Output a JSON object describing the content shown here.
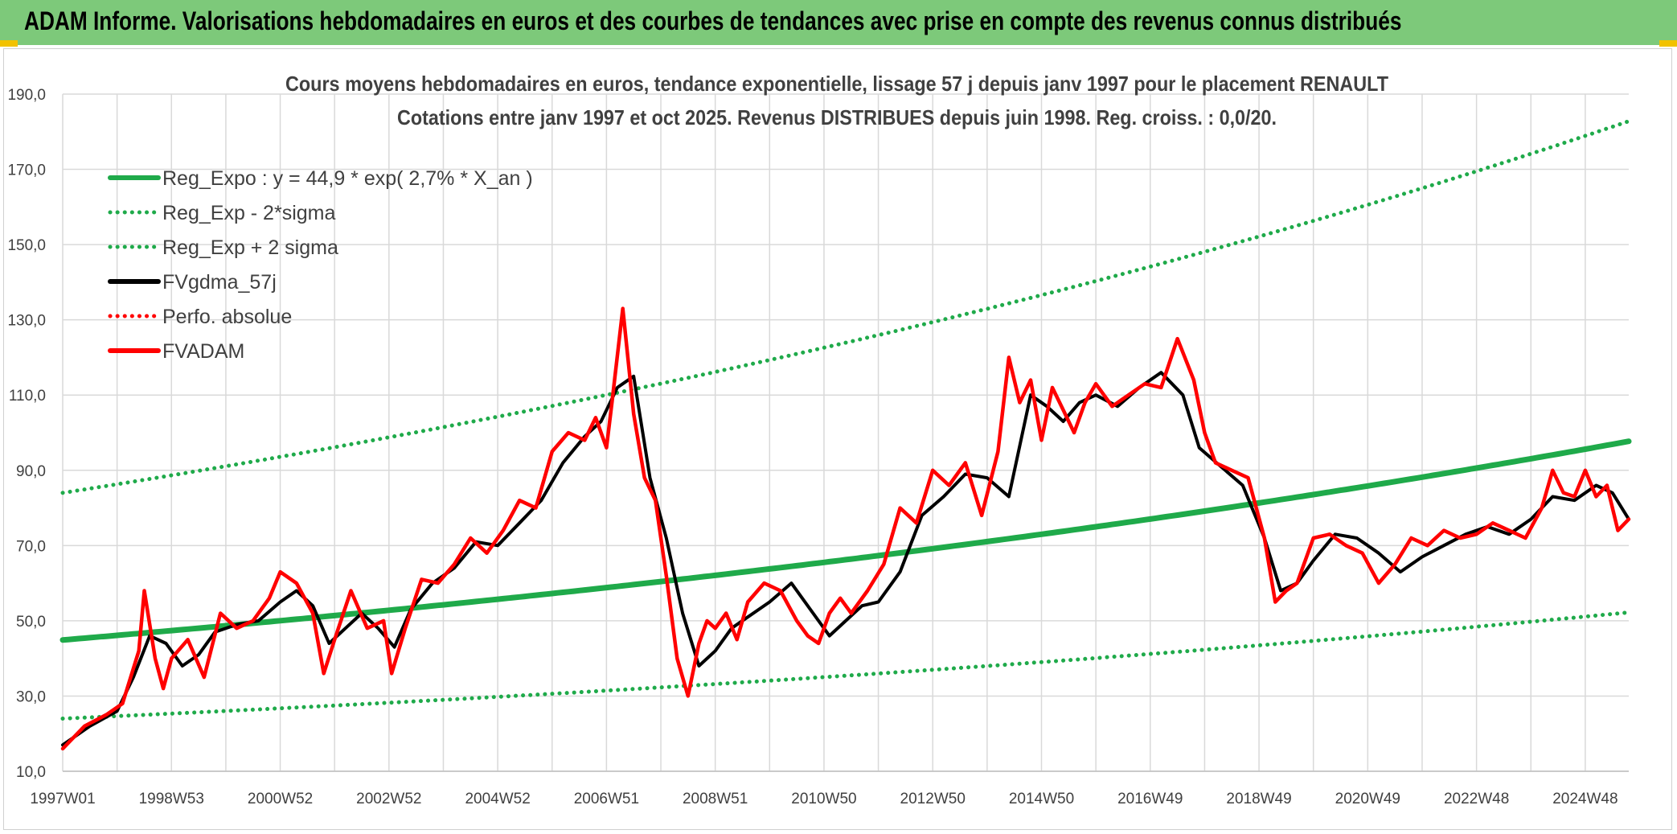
{
  "header": {
    "title": "ADAM Informe. Valorisations hebdomadaires en euros et des courbes de tendances avec prise en compte des revenus connus distribués"
  },
  "colors": {
    "header_bg": "#7dc97a",
    "green": "#1faa4a",
    "black": "#000000",
    "red": "#ff0000",
    "grid": "#d9d9d9"
  },
  "chart_data": {
    "type": "line",
    "title": "Cours moyens hebdomadaires en euros, tendance exponentielle, lissage 57 j depuis janv 1997 pour le placement RENAULT",
    "subtitle": "Cotations entre janv 1997 et oct 2025. Revenus DISTRIBUES depuis juin 1998. Reg. croiss. : 0,0/20.",
    "xlim": [
      1997.0,
      2025.8
    ],
    "ylim": [
      10,
      190
    ],
    "y_ticks": [
      "10,0",
      "30,0",
      "50,0",
      "70,0",
      "90,0",
      "110,0",
      "130,0",
      "150,0",
      "170,0",
      "190,0"
    ],
    "y_tick_values": [
      10,
      30,
      50,
      70,
      90,
      110,
      130,
      150,
      170,
      190
    ],
    "x_ticks": [
      "1997W01",
      "1998W53",
      "2000W52",
      "2002W52",
      "2004W52",
      "2006W51",
      "2008W51",
      "2010W50",
      "2012W50",
      "2014W50",
      "2016W49",
      "2018W49",
      "2020W49",
      "2022W48",
      "2024W48"
    ],
    "x_tick_values": [
      1997.0,
      1999.0,
      2001.0,
      2003.0,
      2005.0,
      2007.0,
      2009.0,
      2011.0,
      2013.0,
      2015.0,
      2017.0,
      2019.0,
      2021.0,
      2023.0,
      2025.0
    ],
    "legend": [
      {
        "name": "Reg_Expo : y = 44,9 * exp( 2,7% *  X_an )",
        "color": "#1faa4a",
        "style": "solid"
      },
      {
        "name": "Reg_Exp - 2*sigma",
        "color": "#1faa4a",
        "style": "dotted"
      },
      {
        "name": "Reg_Exp + 2 sigma",
        "color": "#1faa4a",
        "style": "dotted"
      },
      {
        "name": "FVgdma_57j",
        "color": "#000000",
        "style": "solid"
      },
      {
        "name": "Perfo. absolue",
        "color": "#ff0000",
        "style": "dotted"
      },
      {
        "name": "FVADAM",
        "color": "#ff0000",
        "style": "solid"
      }
    ],
    "series": [
      {
        "name": "Reg_Expo",
        "formula": "44.9*exp(0.027*(x-1997))",
        "x": [
          1997.0,
          2001.0,
          2005.0,
          2009.0,
          2013.0,
          2017.0,
          2021.0,
          2025.8
        ],
        "values": [
          44.9,
          50.1,
          55.9,
          62.4,
          69.7,
          77.8,
          86.8,
          97.8
        ]
      },
      {
        "name": "Reg_Exp - 2*sigma",
        "x": [
          1997.0,
          2001.0,
          2005.0,
          2009.0,
          2013.0,
          2017.0,
          2021.0,
          2025.8
        ],
        "values": [
          24.0,
          26.7,
          29.8,
          33.3,
          37.1,
          41.4,
          46.3,
          52.2
        ]
      },
      {
        "name": "Reg_Exp + 2 sigma",
        "x": [
          1997.0,
          2001.0,
          2005.0,
          2009.0,
          2013.0,
          2017.0,
          2021.0,
          2025.8
        ],
        "values": [
          84.0,
          93.8,
          104.7,
          116.8,
          130.4,
          145.5,
          162.4,
          183.0
        ]
      },
      {
        "name": "FVgdma_57j",
        "x": [
          1997.0,
          1997.5,
          1998.0,
          1998.3,
          1998.6,
          1998.9,
          1999.2,
          1999.5,
          1999.8,
          2000.2,
          2000.6,
          2001.0,
          2001.3,
          2001.6,
          2001.9,
          2002.2,
          2002.5,
          2002.8,
          2003.1,
          2003.4,
          2003.8,
          2004.2,
          2004.6,
          2005.0,
          2005.4,
          2005.8,
          2006.2,
          2006.6,
          2006.9,
          2007.2,
          2007.5,
          2007.8,
          2008.1,
          2008.4,
          2008.7,
          2009.0,
          2009.3,
          2009.6,
          2010.0,
          2010.4,
          2010.8,
          2011.1,
          2011.4,
          2011.7,
          2012.0,
          2012.4,
          2012.8,
          2013.2,
          2013.6,
          2014.0,
          2014.4,
          2014.8,
          2015.1,
          2015.4,
          2015.7,
          2016.0,
          2016.4,
          2016.8,
          2017.2,
          2017.6,
          2017.9,
          2018.3,
          2018.7,
          2019.1,
          2019.4,
          2019.7,
          2020.0,
          2020.4,
          2020.8,
          2021.2,
          2021.6,
          2022.0,
          2022.4,
          2022.8,
          2023.2,
          2023.6,
          2024.0,
          2024.4,
          2024.8,
          2025.2,
          2025.5,
          2025.8
        ],
        "values": [
          17,
          22,
          26,
          35,
          46,
          44,
          38,
          41,
          47,
          49,
          50,
          55,
          58,
          54,
          44,
          48,
          52,
          48,
          43,
          53,
          60,
          64,
          71,
          70,
          76,
          82,
          92,
          99,
          103,
          112,
          115,
          88,
          72,
          52,
          38,
          42,
          48,
          51,
          55,
          60,
          52,
          46,
          50,
          54,
          55,
          63,
          78,
          83,
          89,
          88,
          83,
          110,
          107,
          103,
          108,
          110,
          107,
          112,
          116,
          110,
          96,
          91,
          86,
          72,
          58,
          60,
          66,
          73,
          72,
          68,
          63,
          67,
          70,
          73,
          75,
          73,
          77,
          83,
          82,
          86,
          84,
          77
        ]
      },
      {
        "name": "FVADAM",
        "x": [
          1997.0,
          1997.4,
          1997.8,
          1998.1,
          1998.4,
          1998.5,
          1998.7,
          1998.85,
          1999.0,
          1999.3,
          1999.6,
          1999.9,
          2000.2,
          2000.5,
          2000.8,
          2001.0,
          2001.3,
          2001.6,
          2001.8,
          2002.0,
          2002.3,
          2002.6,
          2002.9,
          2003.05,
          2003.3,
          2003.6,
          2003.9,
          2004.2,
          2004.5,
          2004.8,
          2005.1,
          2005.4,
          2005.7,
          2006.0,
          2006.3,
          2006.6,
          2006.8,
          2007.0,
          2007.1,
          2007.3,
          2007.5,
          2007.7,
          2007.9,
          2008.1,
          2008.3,
          2008.5,
          2008.7,
          2008.85,
          2009.0,
          2009.2,
          2009.4,
          2009.6,
          2009.9,
          2010.2,
          2010.5,
          2010.7,
          2010.9,
          2011.1,
          2011.3,
          2011.5,
          2011.8,
          2012.1,
          2012.4,
          2012.7,
          2013.0,
          2013.3,
          2013.6,
          2013.9,
          2014.2,
          2014.4,
          2014.6,
          2014.8,
          2015.0,
          2015.2,
          2015.4,
          2015.6,
          2015.8,
          2016.0,
          2016.3,
          2016.6,
          2016.9,
          2017.2,
          2017.5,
          2017.8,
          2018.0,
          2018.2,
          2018.5,
          2018.8,
          2019.1,
          2019.3,
          2019.5,
          2019.7,
          2020.0,
          2020.3,
          2020.6,
          2020.9,
          2021.2,
          2021.5,
          2021.8,
          2022.1,
          2022.4,
          2022.7,
          2023.0,
          2023.3,
          2023.6,
          2023.9,
          2024.2,
          2024.4,
          2024.6,
          2024.8,
          2025.0,
          2025.2,
          2025.4,
          2025.6,
          2025.8
        ],
        "values": [
          16,
          22,
          25,
          28,
          42,
          58,
          40,
          32,
          40,
          45,
          35,
          52,
          48,
          50,
          56,
          63,
          60,
          52,
          36,
          45,
          58,
          48,
          50,
          36,
          48,
          61,
          60,
          65,
          72,
          68,
          74,
          82,
          80,
          95,
          100,
          98,
          104,
          96,
          108,
          133,
          105,
          88,
          82,
          62,
          40,
          30,
          44,
          50,
          48,
          52,
          45,
          55,
          60,
          58,
          50,
          46,
          44,
          52,
          56,
          52,
          58,
          65,
          80,
          76,
          90,
          86,
          92,
          78,
          95,
          120,
          108,
          114,
          98,
          112,
          106,
          100,
          108,
          113,
          107,
          110,
          113,
          112,
          125,
          114,
          100,
          92,
          90,
          88,
          72,
          55,
          58,
          60,
          72,
          73,
          70,
          68,
          60,
          65,
          72,
          70,
          74,
          72,
          73,
          76,
          74,
          72,
          80,
          90,
          84,
          83,
          90,
          83,
          86,
          74,
          77
        ]
      }
    ]
  }
}
